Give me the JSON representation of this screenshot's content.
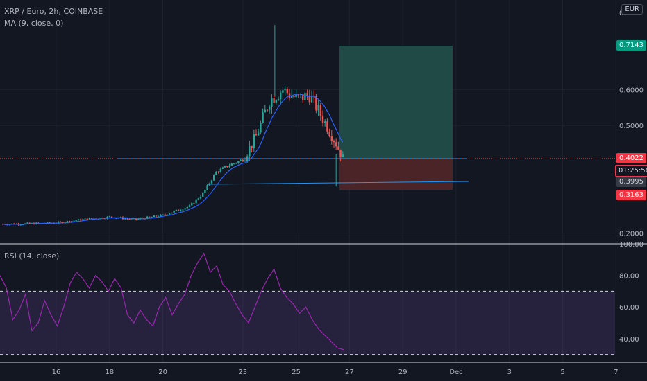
{
  "header": {
    "symbol_legend": "XRP / Euro, 2h, COINBASE",
    "ma_legend": "MA (9, close, 0)",
    "currency_button": "EUR"
  },
  "colors": {
    "background": "#131722",
    "grid": "#1e222d",
    "axis_text": "#b2b5be",
    "up_candle": "#26a69a",
    "down_candle": "#ef5350",
    "ma_line": "#2962ff",
    "rsi_line": "#9c27b0",
    "profit_zone": "#1f4a45",
    "loss_zone": "#4a2427",
    "support_line": "#2196f3",
    "target_tag": "#089981",
    "stop_tag": "#f23645"
  },
  "price_axis": {
    "ticks": [
      "0.2000",
      "0.5000",
      "0.6000"
    ],
    "top_label": "0"
  },
  "price_tags": {
    "target": "0.7143",
    "entry": "0.4022",
    "countdown": "01:25:56",
    "last": "0.3995",
    "stop": "0.3163"
  },
  "time_axis": {
    "labels": [
      "16",
      "18",
      "20",
      "23",
      "25",
      "27",
      "29",
      "Dec",
      "3",
      "5",
      "7"
    ]
  },
  "rsi": {
    "legend": "RSI (14, close)",
    "ticks": [
      "100.00",
      "80.00",
      "60.00",
      "40.00"
    ],
    "upper_band": 70,
    "lower_band": 30
  },
  "chart_data": [
    {
      "type": "candlestick",
      "title": "XRP / Euro, 2h, COINBASE",
      "x_labels": [
        "16",
        "18",
        "20",
        "23",
        "25",
        "27",
        "29",
        "Dec",
        "3",
        "5",
        "7"
      ],
      "ylim": [
        0.17,
        0.85
      ],
      "y_ticks": [
        0.2,
        0.5,
        0.6
      ],
      "grid": true,
      "price_path": [
        {
          "x": "14",
          "y": 0.225
        },
        {
          "x": "15",
          "y": 0.226
        },
        {
          "x": "16",
          "y": 0.228
        },
        {
          "x": "17",
          "y": 0.238
        },
        {
          "x": "18",
          "y": 0.245
        },
        {
          "x": "19",
          "y": 0.238
        },
        {
          "x": "20",
          "y": 0.25
        },
        {
          "x": "21",
          "y": 0.275
        },
        {
          "x": "21.5",
          "y": 0.31
        },
        {
          "x": "22",
          "y": 0.37
        },
        {
          "x": "22.5",
          "y": 0.39
        },
        {
          "x": "23",
          "y": 0.405
        },
        {
          "x": "23.5",
          "y": 0.47
        },
        {
          "x": "24",
          "y": 0.57
        },
        {
          "x": "24.5",
          "y": 0.6
        },
        {
          "x": "25",
          "y": 0.575
        },
        {
          "x": "25.5",
          "y": 0.585
        },
        {
          "x": "26",
          "y": 0.52
        },
        {
          "x": "26.5",
          "y": 0.45
        },
        {
          "x": "26.8",
          "y": 0.4
        }
      ],
      "spike_high": 0.78,
      "ma_series": "MA (9, close, 0)",
      "horizontal_lines": [
        0.4022,
        0.335
      ],
      "position": {
        "entry": 0.4022,
        "target": 0.7143,
        "stop": 0.3163,
        "last": 0.3995
      }
    },
    {
      "type": "line",
      "title": "RSI (14, close)",
      "ylim": [
        25,
        100
      ],
      "y_ticks": [
        40,
        60,
        80,
        100
      ],
      "bands": [
        30,
        70
      ],
      "values": [
        80,
        72,
        52,
        58,
        68,
        45,
        50,
        64,
        55,
        48,
        60,
        75,
        82,
        78,
        72,
        80,
        76,
        70,
        78,
        72,
        55,
        50,
        58,
        52,
        48,
        60,
        66,
        55,
        62,
        68,
        80,
        88,
        94,
        82,
        86,
        74,
        70,
        62,
        55,
        50,
        60,
        70,
        78,
        84,
        72,
        66,
        62,
        56,
        60,
        52,
        46,
        42,
        38,
        34,
        33
      ]
    }
  ]
}
